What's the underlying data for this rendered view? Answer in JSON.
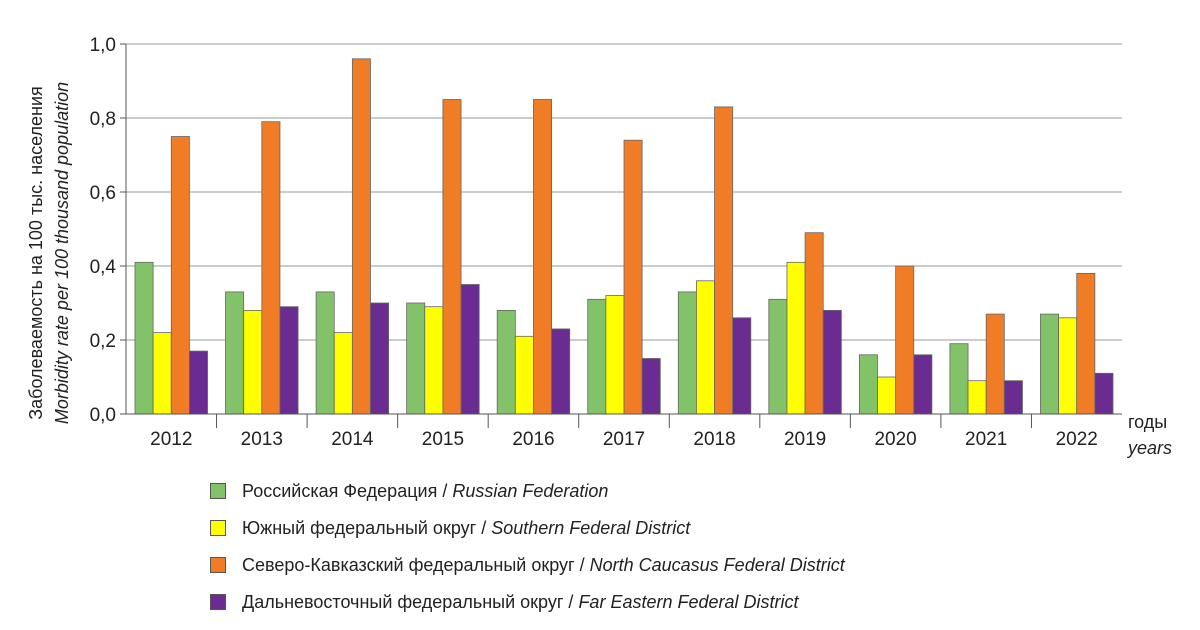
{
  "chart_data": {
    "type": "bar",
    "categories": [
      "2012",
      "2013",
      "2014",
      "2015",
      "2016",
      "2017",
      "2018",
      "2019",
      "2020",
      "2021",
      "2022"
    ],
    "series": [
      {
        "name_ru": "Российская Федерация",
        "name_en": "Russian Federation",
        "color": "#82c36a",
        "values": [
          0.41,
          0.33,
          0.33,
          0.3,
          0.28,
          0.31,
          0.33,
          0.31,
          0.16,
          0.19,
          0.27
        ]
      },
      {
        "name_ru": "Южный федеральный округ",
        "name_en": "Southern Federal District",
        "color": "#ffff00",
        "values": [
          0.22,
          0.28,
          0.22,
          0.29,
          0.21,
          0.32,
          0.36,
          0.41,
          0.1,
          0.09,
          0.26
        ]
      },
      {
        "name_ru": "Северо-Кавказский федеральный округ",
        "name_en": "North Caucasus Federal District",
        "color": "#f07c26",
        "values": [
          0.75,
          0.79,
          0.96,
          0.85,
          0.85,
          0.74,
          0.83,
          0.49,
          0.4,
          0.27,
          0.38
        ]
      },
      {
        "name_ru": "Дальневосточный федеральный округ",
        "name_en": "Far Eastern Federal District",
        "color": "#6a2c91",
        "values": [
          0.17,
          0.29,
          0.3,
          0.35,
          0.23,
          0.15,
          0.26,
          0.28,
          0.16,
          0.09,
          0.11
        ]
      }
    ],
    "ylabel_ru": "Заболеваемость на 100 тыс. населения",
    "ylabel_en": "Morbidity rate per 100 thousand population",
    "xlabel_ru": "годы",
    "xlabel_en": "years",
    "yticks": [
      "0,0",
      "0,2",
      "0,4",
      "0,6",
      "0,8",
      "1,0"
    ],
    "ylim": [
      0,
      1.0
    ],
    "grid": true,
    "legend_position": "bottom"
  }
}
